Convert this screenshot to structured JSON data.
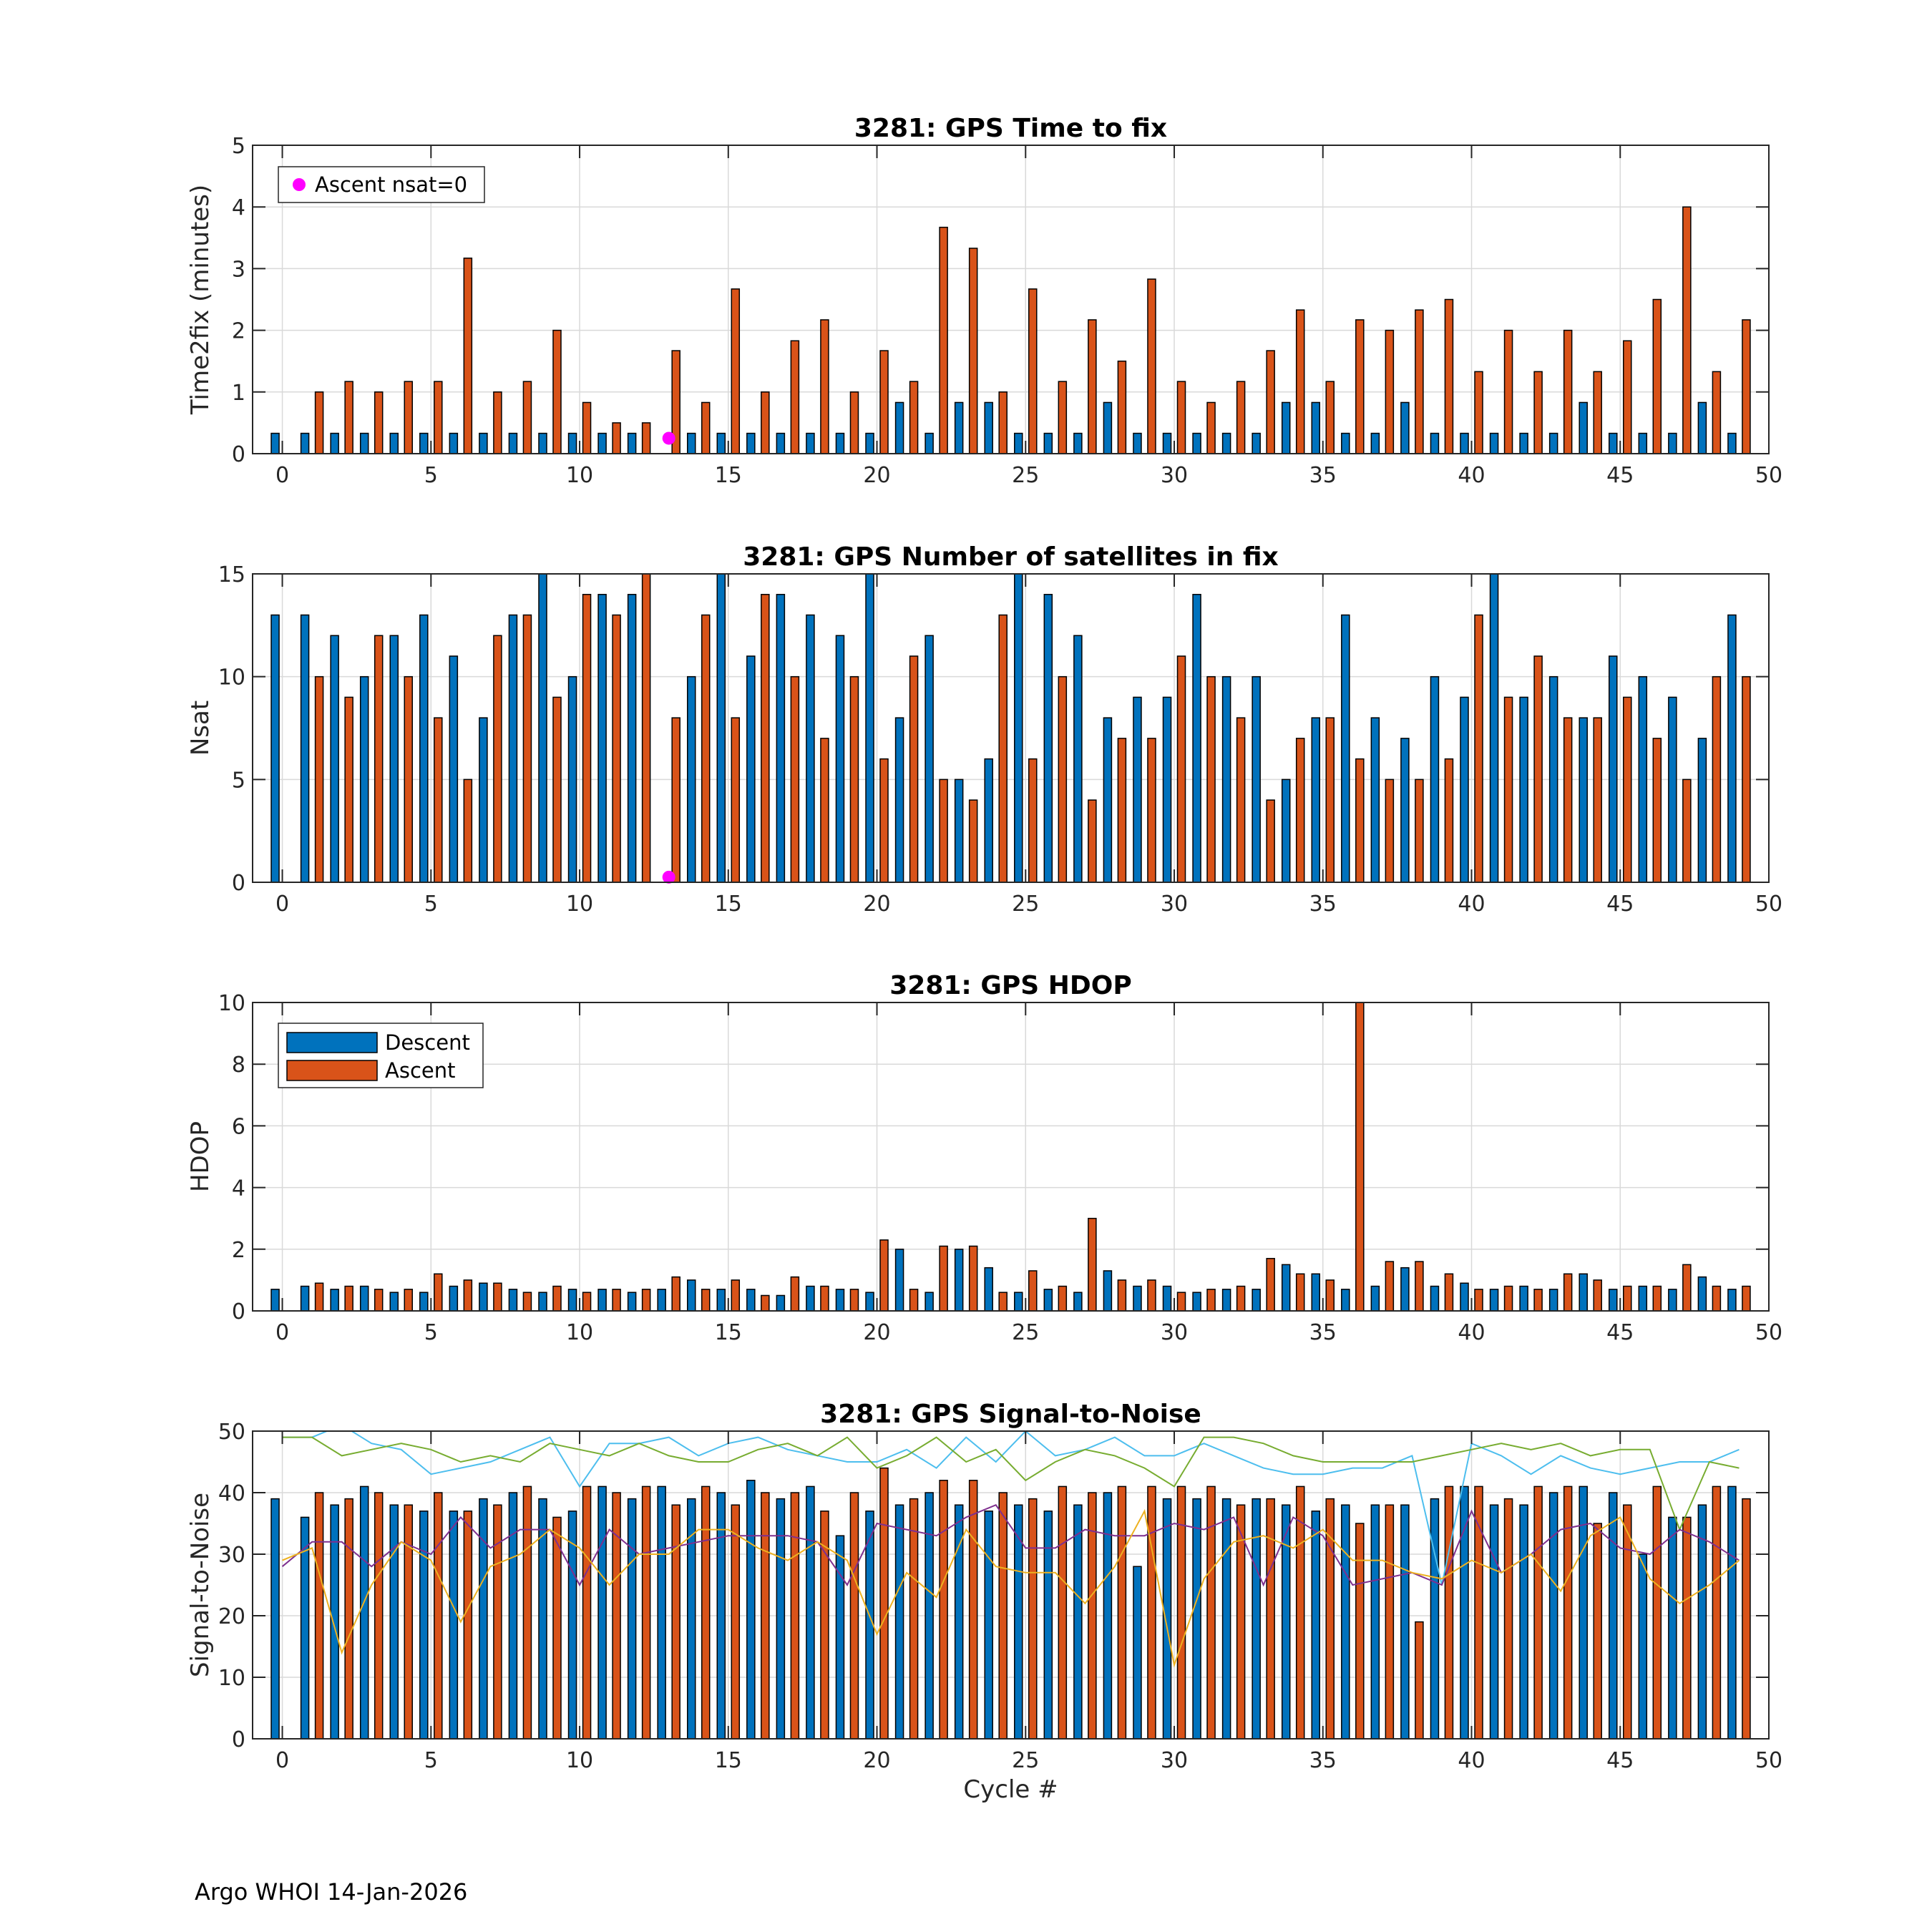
{
  "footer": "Argo WHOI 14-Jan-2026",
  "x_axis": {
    "label": "Cycle #",
    "lim": [
      -1,
      50
    ],
    "ticks": [
      0,
      5,
      10,
      15,
      20,
      25,
      30,
      35,
      40,
      45,
      50
    ]
  },
  "colors": {
    "descent": "#0072BD",
    "ascent": "#D95319",
    "marker": "#FF00FF",
    "sn_cyan": "#4DBEEE",
    "sn_green": "#77AC30",
    "sn_purple": "#7E2F8E",
    "sn_yellow": "#EDB120"
  },
  "legend": {
    "descent_label": "Descent",
    "ascent_label": "Ascent",
    "marker_label": "Ascent nsat=0"
  },
  "chart_data": [
    {
      "id": "time2fix",
      "type": "bar",
      "title": "3281: GPS Time to fix",
      "ylabel": "Time2fix (minutes)",
      "ylim": [
        0,
        5
      ],
      "yticks": [
        0,
        1,
        2,
        3,
        4,
        5
      ],
      "grid": true,
      "legend_position": "top-left",
      "series": [
        {
          "name": "Descent",
          "values": [
            0.33,
            0.33,
            0.33,
            0.33,
            0.33,
            0.33,
            0.33,
            0.33,
            0.33,
            0.33,
            0.33,
            0.33,
            0.33,
            0,
            0.33,
            0.33,
            0.33,
            0.33,
            0.33,
            0.33,
            0.33,
            0.83,
            0.33,
            0.83,
            0.83,
            0.33,
            0.33,
            0.33,
            0.83,
            0.33,
            0.33,
            0.33,
            0.33,
            0.33,
            0.83,
            0.83,
            0.33,
            0.33,
            0.83,
            0.33,
            0.33,
            0.33,
            0.33,
            0.33,
            0.83,
            0.33,
            0.33,
            0.33,
            0.83,
            0.33
          ]
        },
        {
          "name": "Ascent",
          "values": [
            0,
            1.0,
            1.17,
            1.0,
            1.17,
            1.17,
            3.17,
            1.0,
            1.17,
            2.0,
            0.83,
            0.5,
            0.5,
            1.67,
            0.83,
            2.67,
            1.0,
            1.83,
            2.17,
            1.0,
            1.67,
            1.17,
            3.67,
            3.33,
            1.0,
            2.67,
            1.17,
            2.17,
            1.5,
            2.83,
            1.17,
            0.83,
            1.17,
            1.67,
            2.33,
            1.17,
            2.17,
            2.0,
            2.33,
            2.5,
            1.33,
            2.0,
            1.33,
            2.0,
            1.33,
            1.83,
            2.5,
            4.0,
            1.33,
            2.17
          ]
        }
      ],
      "markers": [
        {
          "name": "Ascent nsat=0",
          "x": 13,
          "y": 0.25
        }
      ]
    },
    {
      "id": "nsat",
      "type": "bar",
      "title": "3281: GPS Number of satellites in fix",
      "ylabel": "Nsat",
      "ylim": [
        0,
        15
      ],
      "yticks": [
        0,
        5,
        10,
        15
      ],
      "grid": true,
      "series": [
        {
          "name": "Descent",
          "values": [
            13,
            13,
            12,
            10,
            12,
            13,
            11,
            8,
            13,
            15,
            10,
            14,
            14,
            0,
            10,
            15,
            11,
            14,
            13,
            12,
            15,
            8,
            12,
            5,
            6,
            15,
            14,
            12,
            8,
            9,
            9,
            14,
            10,
            10,
            5,
            8,
            13,
            8,
            7,
            10,
            9,
            15,
            9,
            10,
            8,
            11,
            10,
            9,
            7,
            13
          ]
        },
        {
          "name": "Ascent",
          "values": [
            0,
            10,
            9,
            12,
            10,
            8,
            5,
            12,
            13,
            9,
            14,
            13,
            15,
            8,
            13,
            8,
            14,
            10,
            7,
            10,
            6,
            11,
            5,
            4,
            13,
            6,
            10,
            4,
            7,
            7,
            11,
            10,
            8,
            4,
            7,
            8,
            6,
            5,
            5,
            6,
            13,
            9,
            11,
            8,
            8,
            9,
            7,
            5,
            10,
            10
          ]
        }
      ],
      "markers": [
        {
          "name": "Ascent nsat=0",
          "x": 13,
          "y": 0.25
        }
      ]
    },
    {
      "id": "hdop",
      "type": "bar",
      "title": "3281: GPS HDOP",
      "ylabel": "HDOP",
      "ylim": [
        0,
        10
      ],
      "yticks": [
        0,
        2,
        4,
        6,
        8,
        10
      ],
      "grid": true,
      "legend_position": "top-left",
      "series": [
        {
          "name": "Descent",
          "values": [
            0.7,
            0.8,
            0.7,
            0.8,
            0.6,
            0.6,
            0.8,
            0.9,
            0.7,
            0.6,
            0.7,
            0.7,
            0.6,
            0.7,
            1.0,
            0.7,
            0.7,
            0.5,
            0.8,
            0.7,
            0.6,
            2.0,
            0.6,
            2.0,
            1.4,
            0.6,
            0.7,
            0.6,
            1.3,
            0.8,
            0.8,
            0.6,
            0.7,
            0.7,
            1.5,
            1.2,
            0.7,
            0.8,
            1.4,
            0.8,
            0.9,
            0.7,
            0.8,
            0.7,
            1.2,
            0.7,
            0.8,
            0.7,
            1.1,
            0.7
          ]
        },
        {
          "name": "Ascent",
          "values": [
            0,
            0.9,
            0.8,
            0.7,
            0.7,
            1.2,
            1.0,
            0.9,
            0.6,
            0.8,
            0.6,
            0.7,
            0.7,
            1.1,
            0.7,
            1.0,
            0.5,
            1.1,
            0.8,
            0.7,
            2.3,
            0.7,
            2.1,
            2.1,
            0.6,
            1.3,
            0.8,
            3.0,
            1.0,
            1.0,
            0.6,
            0.7,
            0.8,
            1.7,
            1.2,
            1.0,
            10,
            1.6,
            1.6,
            1.2,
            0.7,
            0.8,
            0.7,
            1.2,
            1.0,
            0.8,
            0.8,
            1.5,
            0.8,
            0.8
          ]
        }
      ]
    },
    {
      "id": "snr",
      "type": "bar",
      "title": "3281: GPS Signal-to-Noise",
      "ylabel": "Signal-to-Noise",
      "xlabel": "Cycle #",
      "ylim": [
        0,
        50
      ],
      "yticks": [
        0,
        10,
        20,
        30,
        40,
        50
      ],
      "grid": true,
      "series": [
        {
          "name": "Descent",
          "values": [
            39,
            36,
            38,
            41,
            38,
            37,
            37,
            39,
            40,
            39,
            37,
            41,
            39,
            41,
            39,
            40,
            42,
            39,
            41,
            33,
            37,
            38,
            40,
            38,
            37,
            38,
            37,
            38,
            40,
            28,
            39,
            39,
            39,
            39,
            38,
            37,
            38,
            38,
            38,
            39,
            41,
            38,
            38,
            40,
            41,
            40,
            30,
            36,
            38,
            41
          ]
        },
        {
          "name": "Ascent",
          "values": [
            0,
            40,
            39,
            40,
            38,
            40,
            37,
            38,
            41,
            36,
            41,
            40,
            41,
            38,
            41,
            38,
            40,
            40,
            37,
            40,
            44,
            39,
            42,
            42,
            40,
            39,
            41,
            40,
            41,
            41,
            41,
            41,
            38,
            39,
            41,
            39,
            35,
            38,
            19,
            41,
            41,
            39,
            41,
            41,
            35,
            38,
            41,
            36,
            41,
            39
          ]
        }
      ],
      "lines": [
        {
          "name": "cyan",
          "values": [
            49,
            49,
            51,
            48,
            47,
            43,
            44,
            45,
            47,
            49,
            41,
            48,
            48,
            49,
            46,
            48,
            49,
            47,
            46,
            45,
            45,
            47,
            44,
            49,
            45,
            50,
            46,
            47,
            49,
            46,
            46,
            48,
            46,
            44,
            43,
            43,
            44,
            44,
            46,
            25,
            48,
            46,
            43,
            46,
            44,
            43,
            44,
            45,
            45,
            47
          ]
        },
        {
          "name": "green",
          "values": [
            49,
            49,
            46,
            47,
            48,
            47,
            45,
            46,
            45,
            48,
            47,
            46,
            48,
            46,
            45,
            45,
            47,
            48,
            46,
            49,
            44,
            46,
            49,
            45,
            47,
            42,
            45,
            47,
            46,
            44,
            41,
            49,
            49,
            48,
            46,
            45,
            45,
            45,
            45,
            46,
            47,
            48,
            47,
            48,
            46,
            47,
            47,
            34,
            45,
            44
          ]
        },
        {
          "name": "purple",
          "values": [
            28,
            32,
            32,
            28,
            32,
            30,
            36,
            31,
            34,
            34,
            25,
            34,
            30,
            31,
            32,
            33,
            33,
            33,
            32,
            25,
            35,
            34,
            33,
            36,
            38,
            31,
            31,
            34,
            33,
            33,
            35,
            34,
            36,
            25,
            36,
            33,
            25,
            26,
            27,
            25,
            37,
            27,
            30,
            34,
            35,
            31,
            30,
            34,
            32,
            29
          ]
        },
        {
          "name": "yellow",
          "values": [
            29,
            31,
            14,
            25,
            32,
            29,
            19,
            28,
            30,
            34,
            31,
            25,
            30,
            30,
            34,
            34,
            31,
            29,
            32,
            29,
            17,
            27,
            23,
            34,
            28,
            27,
            27,
            22,
            28,
            37,
            12,
            26,
            32,
            33,
            31,
            34,
            29,
            29,
            27,
            26,
            29,
            27,
            30,
            24,
            33,
            36,
            26,
            22,
            25,
            29
          ]
        }
      ]
    }
  ]
}
